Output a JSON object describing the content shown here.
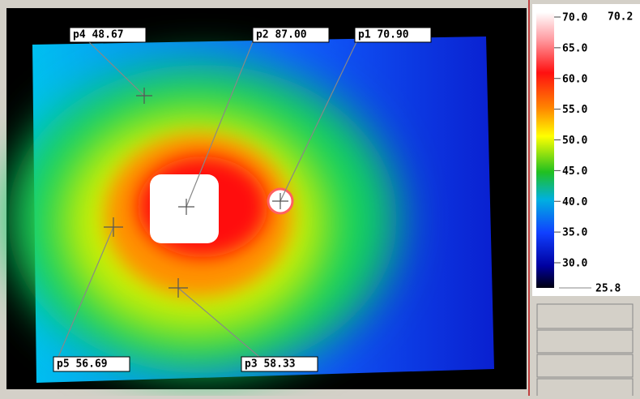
{
  "markers": [
    {
      "label": "p4 48.67"
    },
    {
      "label": "p2 87.00"
    },
    {
      "label": "p1 70.90"
    },
    {
      "label": "p5 56.69"
    },
    {
      "label": "p3 58.33"
    }
  ],
  "colorbar": {
    "max": "70.2",
    "min": "25.8",
    "ticks": [
      "70.0",
      "65.0",
      "60.0",
      "55.0",
      "50.0",
      "45.0",
      "40.0",
      "35.0",
      "30.0"
    ]
  }
}
